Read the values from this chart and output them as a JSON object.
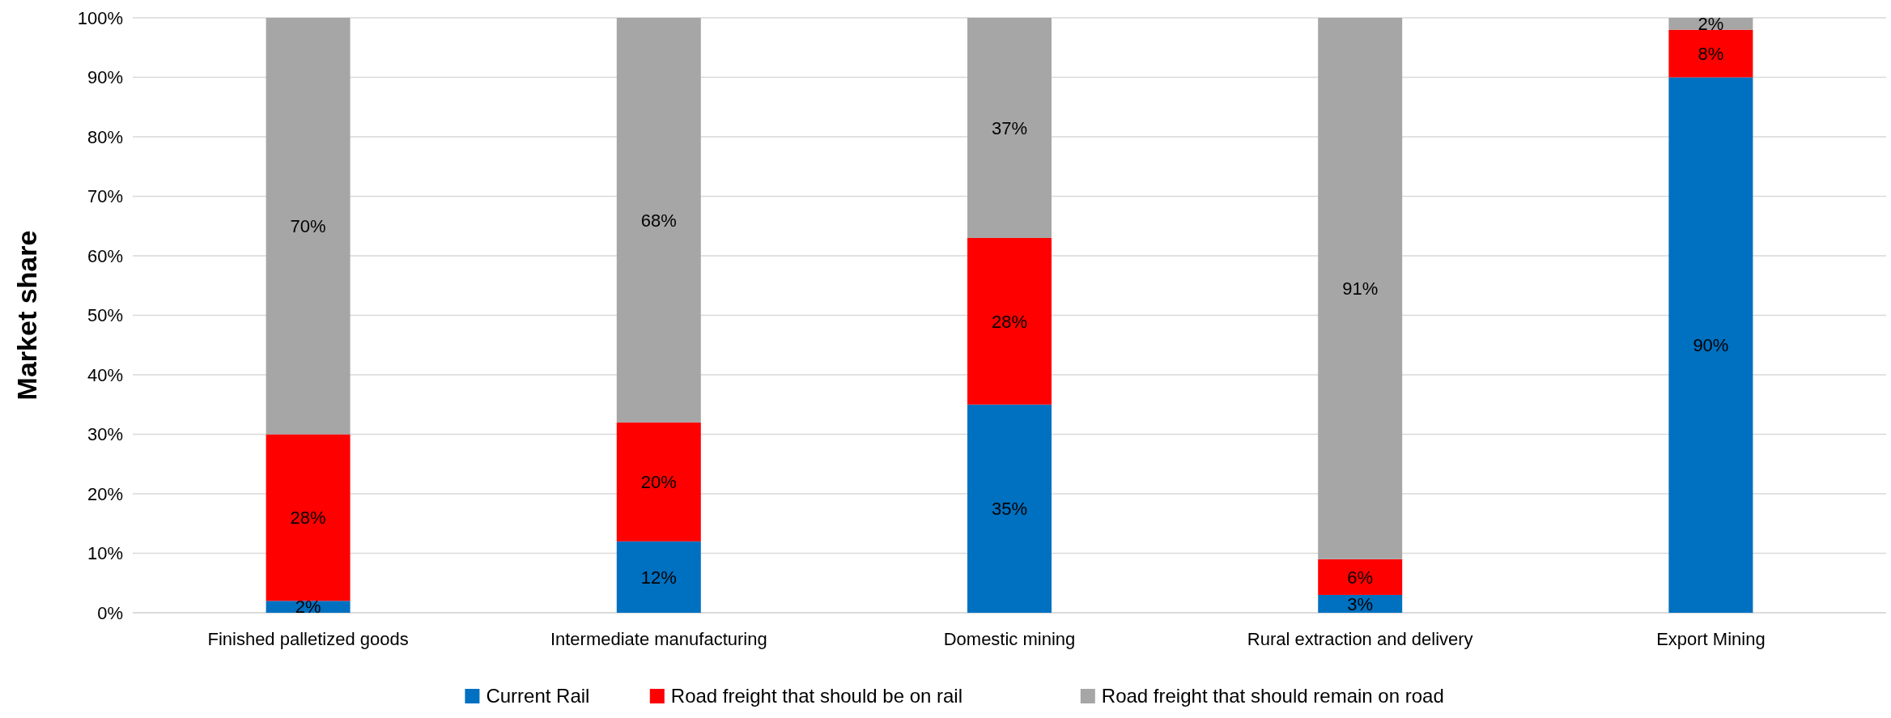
{
  "chart_data": {
    "type": "bar",
    "stacked": true,
    "ylabel": "Market share",
    "categories": [
      "Finished palletized goods",
      "Intermediate manufacturing",
      "Domestic mining",
      "Rural extraction and delivery",
      "Export Mining"
    ],
    "series": [
      {
        "name": "Current Rail",
        "color": "#0070c0",
        "values": [
          2,
          12,
          35,
          3,
          90
        ],
        "value_labels": [
          "2%",
          "12%",
          "35%",
          "3%",
          "90%"
        ]
      },
      {
        "name": "Road freight that should be on rail",
        "color": "#ff0000",
        "values": [
          28,
          20,
          28,
          6,
          8
        ],
        "value_labels": [
          "28%",
          "20%",
          "28%",
          "6%",
          "8%"
        ]
      },
      {
        "name": "Road freight that should remain on road",
        "color": "#a6a6a6",
        "values": [
          70,
          68,
          37,
          91,
          2
        ],
        "value_labels": [
          "70%",
          "68%",
          "37%",
          "91%",
          "2%"
        ]
      }
    ],
    "ylim": [
      0,
      100
    ],
    "yticks": [
      {
        "value": 0,
        "label": "0%"
      },
      {
        "value": 10,
        "label": "10%"
      },
      {
        "value": 20,
        "label": "20%"
      },
      {
        "value": 30,
        "label": "30%"
      },
      {
        "value": 40,
        "label": "40%"
      },
      {
        "value": 50,
        "label": "50%"
      },
      {
        "value": 60,
        "label": "60%"
      },
      {
        "value": 70,
        "label": "70%"
      },
      {
        "value": 80,
        "label": "80%"
      },
      {
        "value": 90,
        "label": "90%"
      },
      {
        "value": 100,
        "label": "100%"
      }
    ],
    "grid": "y",
    "legend": "bottom"
  }
}
